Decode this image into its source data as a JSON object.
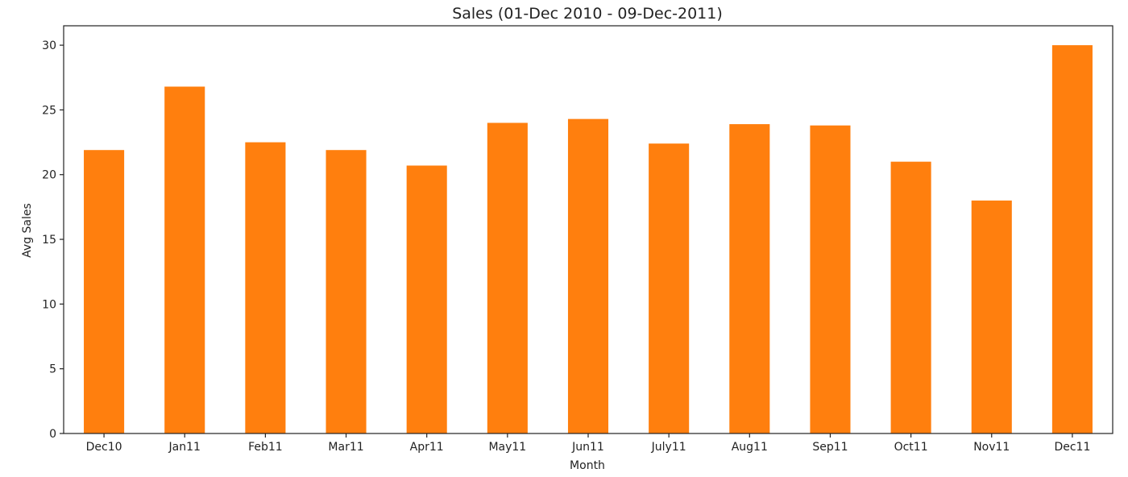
{
  "chart_data": {
    "type": "bar",
    "title": "Sales (01-Dec 2010 - 09-Dec-2011)",
    "xlabel": "Month",
    "ylabel": "Avg Sales",
    "categories": [
      "Dec10",
      "Jan11",
      "Feb11",
      "Mar11",
      "Apr11",
      "May11",
      "Jun11",
      "July11",
      "Aug11",
      "Sep11",
      "Oct11",
      "Nov11",
      "Dec11"
    ],
    "values": [
      21.9,
      26.8,
      22.5,
      21.9,
      20.7,
      24.0,
      24.3,
      22.4,
      23.9,
      23.8,
      21.0,
      18.0,
      30.0
    ],
    "ylim": [
      0,
      31.5
    ],
    "yticks": [
      0,
      5,
      10,
      15,
      20,
      25,
      30
    ],
    "grid": false,
    "bar_color": "#ff7f0e",
    "axis_color": "#222222"
  }
}
